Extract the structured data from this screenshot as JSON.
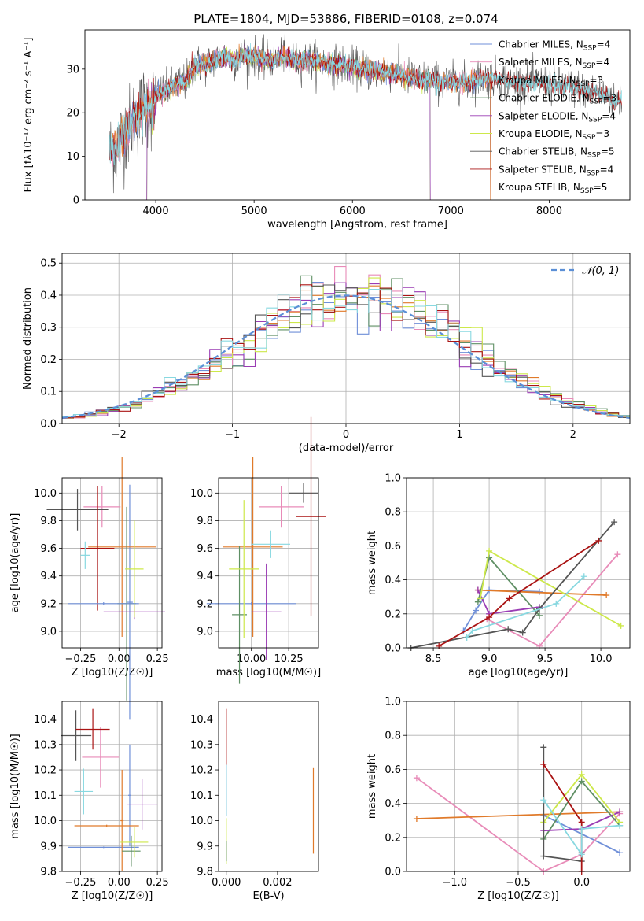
{
  "figure_title": "PLATE=1804, MJD=53886, FIBERID=0108, z=0.074",
  "colors": {
    "Chabrier MILES": "#6f8fd8",
    "Salpeter MILES": "#e88bb8",
    "Kroupa MILES": "#e07a2a",
    "Chabrier ELODIE": "#5f8f64",
    "Salpeter ELODIE": "#9a3cb4",
    "Kroupa ELODIE": "#cde84a",
    "Chabrier STELIB": "#555555",
    "Salpeter STELIB": "#aa1414",
    "Kroupa STELIB": "#88d8e0"
  },
  "chart_data": [
    {
      "id": "spectrum",
      "type": "line",
      "xlabel": "wavelength [Angstrom, rest frame]",
      "ylabel": "Flux [fλ10⁻¹⁷ erg cm⁻² s⁻¹ A⁻¹]",
      "xlim": [
        3280,
        8820
      ],
      "ylim": [
        0,
        39
      ],
      "xticks": [
        4000,
        5000,
        6000,
        7000,
        8000
      ],
      "yticks": [
        0,
        10,
        20,
        30
      ],
      "grid": false,
      "legend_position": "right",
      "legend": [
        "Chabrier MILES, N_SSP=4",
        "Salpeter MILES, N_SSP=4",
        "Kroupa MILES, N_SSP=3",
        "Chabrier ELODIE, N_SSP=3",
        "Salpeter ELODIE, N_SSP=4",
        "Kroupa ELODIE, N_SSP=3",
        "Chabrier STELIB, N_SSP=5",
        "Salpeter STELIB, N_SSP=4",
        "Kroupa STELIB, N_SSP=5"
      ],
      "continuum": [
        [
          3530,
          11
        ],
        [
          3600,
          12
        ],
        [
          3700,
          16
        ],
        [
          3800,
          19
        ],
        [
          3900,
          22
        ],
        [
          3960,
          21
        ],
        [
          4000,
          24
        ],
        [
          4100,
          25
        ],
        [
          4200,
          26.5
        ],
        [
          4300,
          27
        ],
        [
          4400,
          31
        ],
        [
          4500,
          31
        ],
        [
          4600,
          32
        ],
        [
          4700,
          33
        ],
        [
          4800,
          32
        ],
        [
          4900,
          33
        ],
        [
          5000,
          33
        ],
        [
          5100,
          32
        ],
        [
          5200,
          32
        ],
        [
          5300,
          33
        ],
        [
          5400,
          32
        ],
        [
          5500,
          32
        ],
        [
          5600,
          32
        ],
        [
          5700,
          31.5
        ],
        [
          5800,
          31
        ],
        [
          5900,
          31
        ],
        [
          6000,
          30.5
        ],
        [
          6100,
          30
        ],
        [
          6200,
          29.5
        ],
        [
          6300,
          29.5
        ],
        [
          6400,
          29
        ],
        [
          6500,
          28.5
        ],
        [
          6600,
          28
        ],
        [
          6700,
          27.5
        ],
        [
          6800,
          27.5
        ],
        [
          6900,
          27
        ],
        [
          7000,
          27
        ],
        [
          7100,
          27
        ],
        [
          7200,
          27
        ],
        [
          7300,
          28
        ],
        [
          7400,
          28
        ],
        [
          7500,
          28
        ],
        [
          7600,
          27
        ],
        [
          7700,
          27
        ],
        [
          7800,
          27
        ],
        [
          7900,
          27
        ],
        [
          8000,
          26.5
        ],
        [
          8100,
          26
        ],
        [
          8200,
          26
        ],
        [
          8300,
          25.5
        ],
        [
          8400,
          25
        ],
        [
          8500,
          24.5
        ],
        [
          8600,
          24
        ],
        [
          8660,
          22
        ],
        [
          8700,
          23
        ]
      ]
    },
    {
      "id": "residuals",
      "type": "histogram",
      "xlabel": "(data-model)/error",
      "ylabel": "Normed distribution",
      "xlim": [
        -2.5,
        2.5
      ],
      "ylim": [
        0,
        0.53
      ],
      "xticks": [
        -2,
        -1,
        0,
        1,
        2
      ],
      "yticks": [
        0.0,
        0.1,
        0.2,
        0.3,
        0.4,
        0.5
      ],
      "grid": true,
      "legend_position": "top-right",
      "reference_curve": "N(0,1)",
      "bins": 50,
      "bin_width": 0.1
    },
    {
      "id": "age-vs-Z",
      "type": "errorbar",
      "xlabel": "Z [log10(Z/Z☉)]",
      "ylabel": "age  [log10(age/yr)]",
      "xlim": [
        -0.37,
        0.28
      ],
      "ylim": [
        8.88,
        10.11
      ],
      "xticks": [
        -0.25,
        0.0,
        0.25
      ],
      "yticks": [
        9.0,
        9.2,
        9.4,
        9.6,
        9.8,
        10.0
      ],
      "grid": true,
      "points": [
        {
          "model": "Chabrier MILES",
          "x": 0.07,
          "xerr": 0.02,
          "y": 9.21,
          "yerr": 0.85
        },
        {
          "model": "Salpeter MILES",
          "x": -0.11,
          "xerr": 0.12,
          "y": 9.9,
          "yerr": 0.15
        },
        {
          "model": "Kroupa MILES",
          "x": 0.02,
          "xerr": 0.22,
          "y": 9.61,
          "yerr": 0.65
        },
        {
          "model": "Chabrier ELODIE",
          "x": 0.05,
          "xerr": 0.06,
          "y": 9.2,
          "yerr": 0.7
        },
        {
          "model": "Salpeter ELODIE",
          "x": 0.1,
          "xerr": 0.2,
          "y": 9.14,
          "yerr": 0.05
        },
        {
          "model": "Kroupa ELODIE",
          "x": 0.1,
          "xerr": 0.06,
          "y": 9.45,
          "yerr": 0.35
        },
        {
          "model": "Chabrier STELIB",
          "x": -0.27,
          "xerr": 0.2,
          "y": 9.88,
          "yerr": 0.15
        },
        {
          "model": "Salpeter STELIB",
          "x": -0.14,
          "xerr": 0.11,
          "y": 9.6,
          "yerr": 0.45
        },
        {
          "model": "Kroupa STELIB",
          "x": -0.22,
          "xerr": 0.03,
          "y": 9.55,
          "yerr": 0.1
        },
        {
          "model": "Chabrier MILES",
          "x": -0.1,
          "xerr": 0.23,
          "y": 9.2,
          "yerr": 0.01
        }
      ]
    },
    {
      "id": "age-vs-mass",
      "type": "errorbar",
      "xlabel": "mass [log10(M/M☉)]",
      "ylabel": "",
      "xlim": [
        9.78,
        10.45
      ],
      "ylim": [
        8.88,
        10.11
      ],
      "xticks": [
        10.0,
        10.25
      ],
      "yticks": [
        9.0,
        9.2,
        9.4,
        9.6,
        9.8,
        10.0
      ],
      "grid": true,
      "points": [
        {
          "model": "Chabrier MILES",
          "x": 10.0,
          "xerr": 0.3,
          "y": 9.2,
          "yerr": 0.01
        },
        {
          "model": "Salpeter MILES",
          "x": 10.2,
          "xerr": 0.15,
          "y": 9.9,
          "yerr": 0.15
        },
        {
          "model": "Kroupa MILES",
          "x": 10.01,
          "xerr": 0.2,
          "y": 9.61,
          "yerr": 0.65
        },
        {
          "model": "Chabrier ELODIE",
          "x": 9.92,
          "xerr": 0.05,
          "y": 9.12,
          "yerr": 0.5
        },
        {
          "model": "Salpeter ELODIE",
          "x": 10.1,
          "xerr": 0.1,
          "y": 9.14,
          "yerr": 0.35
        },
        {
          "model": "Kroupa ELODIE",
          "x": 9.95,
          "xerr": 0.1,
          "y": 9.45,
          "yerr": 0.5
        },
        {
          "model": "Chabrier STELIB",
          "x": 10.35,
          "xerr": 0.1,
          "y": 10.0,
          "yerr": 0.07
        },
        {
          "model": "Salpeter STELIB",
          "x": 10.4,
          "xerr": 0.1,
          "y": 9.83,
          "yerr": 0.72
        },
        {
          "model": "Kroupa STELIB",
          "x": 10.13,
          "xerr": 0.13,
          "y": 9.63,
          "yerr": 0.1
        }
      ]
    },
    {
      "id": "weight-vs-age",
      "type": "line",
      "xlabel": "age  [log10(age/yr)]",
      "ylabel": "mass weight",
      "xlim": [
        8.26,
        10.26
      ],
      "ylim": [
        0,
        1.0
      ],
      "xticks": [
        8.5,
        9.0,
        9.5,
        10.0
      ],
      "yticks": [
        0.0,
        0.2,
        0.4,
        0.6,
        0.8,
        1.0
      ],
      "grid": true,
      "series": [
        {
          "name": "Chabrier MILES",
          "points": [
            [
              8.77,
              0.1
            ],
            [
              8.88,
              0.22
            ],
            [
              9.0,
              0.34
            ],
            [
              9.45,
              0.33
            ]
          ]
        },
        {
          "name": "Salpeter MILES",
          "points": [
            [
              8.98,
              0.17
            ],
            [
              9.45,
              0.01
            ],
            [
              10.15,
              0.55
            ]
          ]
        },
        {
          "name": "Kroupa MILES",
          "points": [
            [
              8.9,
              0.34
            ],
            [
              10.05,
              0.31
            ]
          ]
        },
        {
          "name": "Chabrier ELODIE",
          "points": [
            [
              8.9,
              0.27
            ],
            [
              9.0,
              0.53
            ],
            [
              9.45,
              0.19
            ]
          ]
        },
        {
          "name": "Salpeter ELODIE",
          "points": [
            [
              8.9,
              0.34
            ],
            [
              9.0,
              0.2
            ],
            [
              9.45,
              0.24
            ]
          ]
        },
        {
          "name": "Kroupa ELODIE",
          "points": [
            [
              8.92,
              0.29
            ],
            [
              9.0,
              0.57
            ],
            [
              10.18,
              0.13
            ]
          ]
        },
        {
          "name": "Chabrier STELIB",
          "points": [
            [
              8.3,
              0.0
            ],
            [
              9.17,
              0.11
            ],
            [
              9.3,
              0.09
            ],
            [
              9.45,
              0.23
            ],
            [
              10.12,
              0.74
            ]
          ]
        },
        {
          "name": "Salpeter STELIB",
          "points": [
            [
              8.55,
              0.01
            ],
            [
              9.0,
              0.18
            ],
            [
              9.18,
              0.29
            ],
            [
              9.98,
              0.63
            ]
          ]
        },
        {
          "name": "Kroupa STELIB",
          "points": [
            [
              8.8,
              0.06
            ],
            [
              8.85,
              0.1
            ],
            [
              9.6,
              0.26
            ],
            [
              9.85,
              0.42
            ]
          ]
        }
      ]
    },
    {
      "id": "mass-vs-Z",
      "type": "errorbar",
      "xlabel": "Z [log10(Z/Z☉)]",
      "ylabel": "mass [log10(M/M☉)]",
      "xlim": [
        -0.37,
        0.28
      ],
      "ylim": [
        9.8,
        10.47
      ],
      "xticks": [
        -0.25,
        0.0,
        0.25
      ],
      "yticks": [
        9.8,
        9.9,
        10.0,
        10.1,
        10.2,
        10.3,
        10.4
      ],
      "grid": true,
      "points": [
        {
          "model": "Chabrier MILES",
          "x": -0.1,
          "xerr": 0.23,
          "y": 9.895,
          "yerr": 0.003
        },
        {
          "model": "Chabrier MILES",
          "x": 0.07,
          "xerr": 0.01,
          "y": 10.1,
          "yerr": 0.2
        },
        {
          "model": "Salpeter MILES",
          "x": -0.12,
          "xerr": 0.12,
          "y": 10.25,
          "yerr": 0.12
        },
        {
          "model": "Kroupa MILES",
          "x": -0.08,
          "xerr": 0.21,
          "y": 9.98,
          "yerr": 0.004
        },
        {
          "model": "Kroupa MILES",
          "x": 0.02,
          "xerr": 0.01,
          "y": 10.0,
          "yerr": 0.2
        },
        {
          "model": "Chabrier ELODIE",
          "x": 0.08,
          "xerr": 0.06,
          "y": 9.88,
          "yerr": 0.06
        },
        {
          "model": "Salpeter ELODIE",
          "x": 0.15,
          "xerr": 0.1,
          "y": 10.065,
          "yerr": 0.1
        },
        {
          "model": "Kroupa ELODIE",
          "x": 0.1,
          "xerr": 0.09,
          "y": 9.915,
          "yerr": 0.06
        },
        {
          "model": "Chabrier STELIB",
          "x": -0.28,
          "xerr": 0.1,
          "y": 10.335,
          "yerr": 0.1
        },
        {
          "model": "Salpeter STELIB",
          "x": -0.17,
          "xerr": 0.11,
          "y": 10.36,
          "yerr": 0.08
        },
        {
          "model": "Kroupa STELIB",
          "x": -0.23,
          "xerr": 0.06,
          "y": 10.115,
          "yerr": 0.09
        }
      ]
    },
    {
      "id": "mass-vs-ebv",
      "type": "errorbar",
      "xlabel": "E(B-V)",
      "ylabel": "",
      "xlim": [
        -0.0003,
        0.0036
      ],
      "ylim": [
        9.8,
        10.47
      ],
      "xticks": [
        0.0,
        0.002
      ],
      "yticks": [
        9.8,
        9.9,
        10.0,
        10.1,
        10.2,
        10.3,
        10.4
      ],
      "grid": false,
      "points": [
        {
          "model": "Salpeter STELIB",
          "x": 0.0,
          "y": 10.33,
          "yerr": 0.11
        },
        {
          "model": "Chabrier MILES",
          "x": 0.0,
          "y": 10.12,
          "yerr": 0.1
        },
        {
          "model": "Kroupa STELIB",
          "x": 0.0,
          "y": 10.12,
          "yerr": 0.1
        },
        {
          "model": "Kroupa ELODIE",
          "x": 0.0,
          "y": 9.92,
          "yerr": 0.09
        },
        {
          "model": "Chabrier ELODIE",
          "x": 0.0,
          "y": 9.88,
          "yerr": 0.04
        },
        {
          "model": "Kroupa MILES",
          "x": 0.0034,
          "y": 10.04,
          "yerr": 0.17
        }
      ]
    },
    {
      "id": "weight-vs-Z",
      "type": "line",
      "xlabel": "Z [log10(Z/Z☉)]",
      "ylabel": "mass weight",
      "xlim": [
        -1.38,
        0.38
      ],
      "ylim": [
        0,
        1.0
      ],
      "xticks": [
        -1.0,
        -0.5,
        0.0
      ],
      "yticks": [
        0.0,
        0.2,
        0.4,
        0.6,
        0.8,
        1.0
      ],
      "grid": true,
      "series": [
        {
          "name": "Chabrier MILES",
          "points": [
            [
              -0.3,
              0.33
            ],
            [
              0.3,
              0.11
            ]
          ]
        },
        {
          "name": "Salpeter MILES",
          "points": [
            [
              -1.3,
              0.55
            ],
            [
              -0.3,
              0.0
            ],
            [
              0.0,
              0.1
            ],
            [
              0.3,
              0.34
            ]
          ]
        },
        {
          "name": "Kroupa MILES",
          "points": [
            [
              -1.3,
              0.31
            ],
            [
              0.3,
              0.35
            ]
          ]
        },
        {
          "name": "Chabrier ELODIE",
          "points": [
            [
              -0.3,
              0.19
            ],
            [
              0.0,
              0.53
            ],
            [
              0.3,
              0.27
            ]
          ]
        },
        {
          "name": "Salpeter ELODIE",
          "points": [
            [
              -0.3,
              0.24
            ],
            [
              0.0,
              0.25
            ],
            [
              0.3,
              0.35
            ]
          ]
        },
        {
          "name": "Kroupa ELODIE",
          "points": [
            [
              -0.3,
              0.29
            ],
            [
              0.0,
              0.57
            ],
            [
              0.3,
              0.29
            ]
          ]
        },
        {
          "name": "Chabrier STELIB",
          "points": [
            [
              -0.3,
              0.73
            ],
            [
              -0.3,
              0.09
            ],
            [
              0.0,
              0.06
            ],
            [
              0.0,
              0.11
            ]
          ]
        },
        {
          "name": "Salpeter STELIB",
          "points": [
            [
              -0.3,
              0.63
            ],
            [
              0.0,
              0.29
            ],
            [
              0.0,
              0.0
            ]
          ]
        },
        {
          "name": "Kroupa STELIB",
          "points": [
            [
              -0.3,
              0.42
            ],
            [
              0.0,
              0.1
            ],
            [
              0.0,
              0.25
            ],
            [
              0.3,
              0.27
            ]
          ]
        }
      ]
    }
  ]
}
